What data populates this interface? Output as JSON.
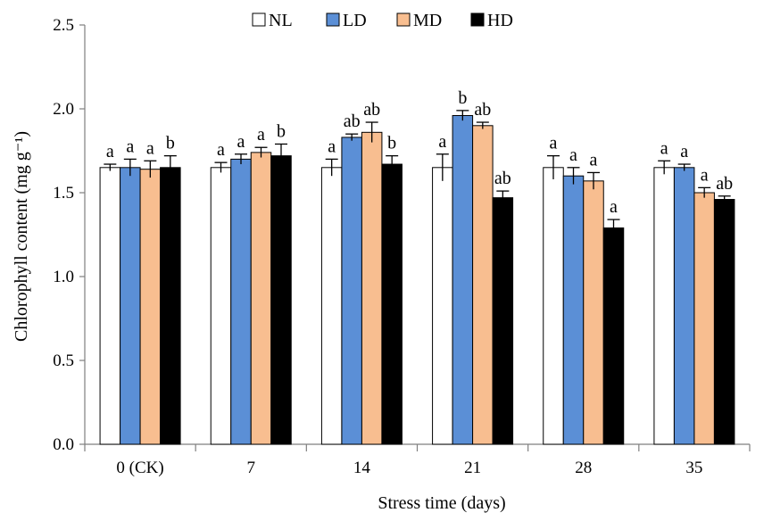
{
  "chart_data": {
    "type": "bar",
    "ylabel": "Chlorophyll content (mg g⁻¹)",
    "xlabel": "Stress time (days)",
    "categories": [
      "0 (CK)",
      "7",
      "14",
      "21",
      "28",
      "35"
    ],
    "ylim": [
      0,
      2.5
    ],
    "yticks": [
      "0.0",
      "0.5",
      "1.0",
      "1.5",
      "2.0",
      "2.5"
    ],
    "grid": false,
    "legend_position": "top-center",
    "series": [
      {
        "name": "NL",
        "color": "#ffffff",
        "values": [
          1.65,
          1.65,
          1.65,
          1.65,
          1.65,
          1.65
        ],
        "errors": [
          0.02,
          0.03,
          0.05,
          0.08,
          0.07,
          0.04
        ],
        "letters": [
          "a",
          "a",
          "a",
          "a",
          "a",
          "a"
        ]
      },
      {
        "name": "LD",
        "color": "#5b8fd6",
        "values": [
          1.65,
          1.7,
          1.83,
          1.96,
          1.6,
          1.65
        ],
        "errors": [
          0.05,
          0.03,
          0.02,
          0.03,
          0.05,
          0.02
        ],
        "letters": [
          "a",
          "a",
          "ab",
          "b",
          "a",
          "a"
        ]
      },
      {
        "name": "MD",
        "color": "#f8be90",
        "values": [
          1.64,
          1.74,
          1.86,
          1.9,
          1.57,
          1.5
        ],
        "errors": [
          0.05,
          0.03,
          0.06,
          0.02,
          0.05,
          0.03
        ],
        "letters": [
          "a",
          "a",
          "ab",
          "ab",
          "a",
          "a"
        ]
      },
      {
        "name": "HD",
        "color": "#000000",
        "values": [
          1.65,
          1.72,
          1.67,
          1.47,
          1.29,
          1.46
        ],
        "errors": [
          0.07,
          0.07,
          0.05,
          0.04,
          0.05,
          0.02
        ],
        "letters": [
          "b",
          "b",
          "b",
          "ab",
          "a",
          "ab"
        ]
      }
    ]
  }
}
